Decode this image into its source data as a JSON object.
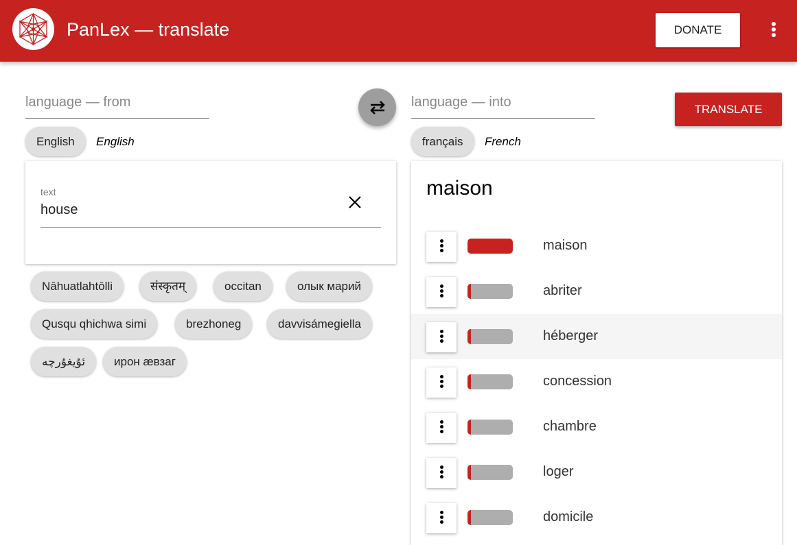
{
  "header": {
    "title": "PanLex — translate",
    "donate_label": "DONATE",
    "logo_icon": "panlex-logo-icon",
    "menu_icon": "more-vert-icon"
  },
  "colors": {
    "brand": "#c62320",
    "chip": "#e0e0e0"
  },
  "from": {
    "placeholder": "language — from",
    "chip": "English",
    "chip_name": "English"
  },
  "into": {
    "placeholder": "language — into",
    "chip": "français",
    "chip_name": "French"
  },
  "translate_label": "TRANSLATE",
  "text_input": {
    "label": "text",
    "value": "house"
  },
  "suggestions": [
    "Nāhuatlahtōlli",
    "संस्कृतम्",
    "occitan",
    "олык марий",
    "Qusqu qhichwa simi",
    "brezhoneg",
    "davvisámegiella",
    "ئۇيغۇرچە",
    "ирон æвзаг"
  ],
  "results": {
    "title": "maison",
    "items": [
      {
        "word": "maison",
        "score": 1.0
      },
      {
        "word": "abriter",
        "score": 0.08
      },
      {
        "word": "héberger",
        "score": 0.08,
        "highlighted": true
      },
      {
        "word": "concession",
        "score": 0.08
      },
      {
        "word": "chambre",
        "score": 0.08
      },
      {
        "word": "loger",
        "score": 0.08
      },
      {
        "word": "domicile",
        "score": 0.08
      }
    ]
  }
}
